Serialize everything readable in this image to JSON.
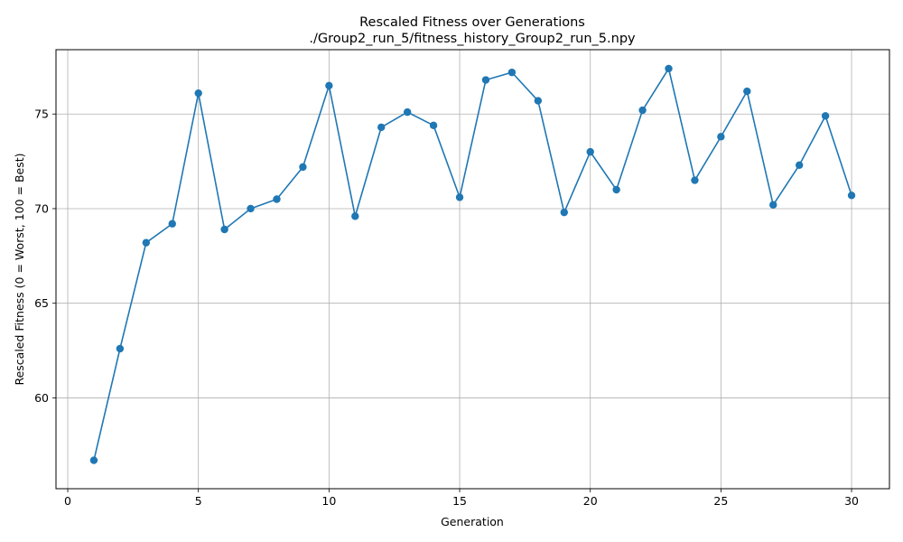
{
  "chart_data": {
    "type": "line",
    "title": "Rescaled Fitness over Generations",
    "subtitle": "./Group2_run_5/fitness_history_Group2_run_5.npy",
    "xlabel": "Generation",
    "ylabel": "Rescaled Fitness (0 = Worst, 100 = Best)",
    "xlim": [
      -0.45,
      31.45
    ],
    "ylim": [
      55.2,
      78.4
    ],
    "xticks": [
      0,
      5,
      10,
      15,
      20,
      25,
      30
    ],
    "yticks": [
      60,
      65,
      70,
      75
    ],
    "xtick_labels": [
      "0",
      "5",
      "10",
      "15",
      "20",
      "25",
      "30"
    ],
    "ytick_labels": [
      "60",
      "65",
      "70",
      "75"
    ],
    "grid": true,
    "series": [
      {
        "color": "#1f77b4",
        "marker": "circle",
        "x": [
          1,
          2,
          3,
          4,
          5,
          6,
          7,
          8,
          9,
          10,
          11,
          12,
          13,
          14,
          15,
          16,
          17,
          18,
          19,
          20,
          21,
          22,
          23,
          24,
          25,
          26,
          27,
          28,
          29,
          30
        ],
        "y": [
          56.7,
          62.6,
          68.2,
          69.2,
          76.1,
          68.9,
          70.0,
          70.5,
          72.2,
          76.5,
          69.6,
          74.3,
          75.1,
          74.4,
          70.6,
          76.8,
          77.2,
          75.7,
          69.8,
          73.0,
          71.0,
          75.2,
          77.4,
          71.5,
          73.8,
          76.2,
          70.2,
          72.3,
          74.9,
          70.7
        ]
      }
    ]
  }
}
